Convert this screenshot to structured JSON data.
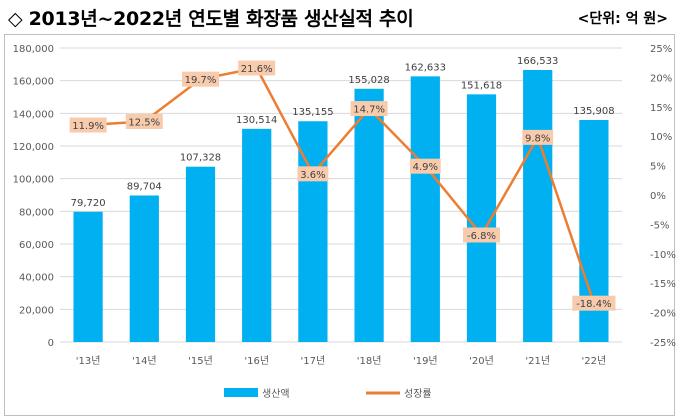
{
  "header": {
    "title": "◇ 2013년~2022년 연도별 화장품 생산실적 추이",
    "unit": "<단위: 억 원>"
  },
  "chart_data": {
    "type": "bar",
    "categories": [
      "'13년",
      "'14년",
      "'15년",
      "'16년",
      "'17년",
      "'18년",
      "'19년",
      "'20년",
      "'21년",
      "'22년"
    ],
    "series": [
      {
        "name": "생산액",
        "type": "bar",
        "axis": "left",
        "color": "#00B0F0",
        "values": [
          79720,
          89704,
          107328,
          130514,
          135155,
          155028,
          162633,
          151618,
          166533,
          135908
        ],
        "labels": [
          "79,720",
          "89,704",
          "107,328",
          "130,514",
          "135,155",
          "155,028",
          "162,633",
          "151,618",
          "166,533",
          "135,908"
        ]
      },
      {
        "name": "성장률",
        "type": "line",
        "axis": "right",
        "color": "#ED7D31",
        "values": [
          11.9,
          12.5,
          19.7,
          21.6,
          3.6,
          14.7,
          4.9,
          -6.8,
          9.8,
          -18.4
        ],
        "labels": [
          "11.9%",
          "12.5%",
          "19.7%",
          "21.6%",
          "3.6%",
          "14.7%",
          "4.9%",
          "-6.8%",
          "9.8%",
          "-18.4%"
        ]
      }
    ],
    "y_left": {
      "ylim": [
        0,
        180000
      ],
      "ticks": [
        "0",
        "20,000",
        "40,000",
        "60,000",
        "80,000",
        "100,000",
        "120,000",
        "140,000",
        "160,000",
        "180,000"
      ]
    },
    "y_right": {
      "ylim": [
        -25,
        25
      ],
      "ticks": [
        "-25%",
        "-20%",
        "-15%",
        "-10%",
        "-5%",
        "0%",
        "5%",
        "10%",
        "15%",
        "20%",
        "25%"
      ]
    },
    "grid": true,
    "legend": "bottom",
    "label_box_color": "#F8CBAD"
  }
}
